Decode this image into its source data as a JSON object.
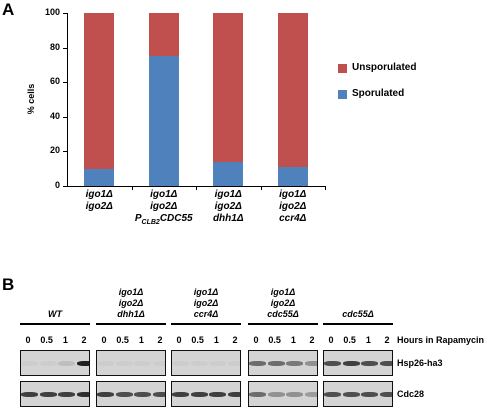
{
  "panel_a": {
    "letter": "A",
    "chart_data": {
      "type": "bar",
      "stacked": true,
      "ylabel": "% cells",
      "ylim": [
        0,
        100
      ],
      "yticks": [
        0,
        20,
        40,
        60,
        80,
        100
      ],
      "categories": [
        {
          "lines": [
            "igo1Δ",
            "igo2Δ"
          ]
        },
        {
          "lines": [
            "igo1Δ",
            "igo2Δ"
          ],
          "promoter_line": {
            "prefix": "P",
            "subscript": "CLB2",
            "suffix": "CDC55"
          }
        },
        {
          "lines": [
            "igo1Δ",
            "igo2Δ",
            "dhh1Δ"
          ]
        },
        {
          "lines": [
            "igo1Δ",
            "igo2Δ",
            "ccr4Δ"
          ]
        }
      ],
      "series": [
        {
          "name": "Sporulated",
          "color": "#4f81bd",
          "values": [
            10,
            75,
            14,
            11
          ]
        },
        {
          "name": "Unsporulated",
          "color": "#c0504d",
          "values": [
            90,
            25,
            86,
            89
          ]
        }
      ],
      "legend": {
        "position": "right",
        "items": [
          "Unsporulated",
          "Sporulated"
        ]
      }
    }
  },
  "panel_b": {
    "letter": "B",
    "groups": [
      {
        "label_lines": [
          "WT"
        ]
      },
      {
        "label_lines": [
          "igo1Δ",
          "igo2Δ",
          "dhh1Δ"
        ]
      },
      {
        "label_lines": [
          "igo1Δ",
          "igo2Δ",
          "ccr4Δ"
        ]
      },
      {
        "label_lines": [
          "igo1Δ",
          "igo2Δ",
          "cdc55Δ"
        ]
      },
      {
        "label_lines": [
          "cdc55Δ"
        ]
      }
    ],
    "timepoints": [
      "0",
      "0.5",
      "1",
      "2"
    ],
    "timepoints_label": "Hours in Rapamycin",
    "rows": [
      {
        "label": "Hsp26-ha3",
        "intensity": [
          [
            0.05,
            0.05,
            0.2,
            0.85
          ],
          [
            0.05,
            0.05,
            0.05,
            0.05
          ],
          [
            0.05,
            0.05,
            0.05,
            0.05
          ],
          [
            0.6,
            0.6,
            0.55,
            0.45
          ],
          [
            0.7,
            0.75,
            0.7,
            0.7
          ]
        ]
      },
      {
        "label": "Cdc28",
        "intensity": [
          [
            0.75,
            0.75,
            0.75,
            0.8
          ],
          [
            0.75,
            0.7,
            0.7,
            0.7
          ],
          [
            0.75,
            0.75,
            0.75,
            0.75
          ],
          [
            0.6,
            0.45,
            0.45,
            0.4
          ],
          [
            0.7,
            0.7,
            0.7,
            0.7
          ]
        ]
      }
    ]
  }
}
